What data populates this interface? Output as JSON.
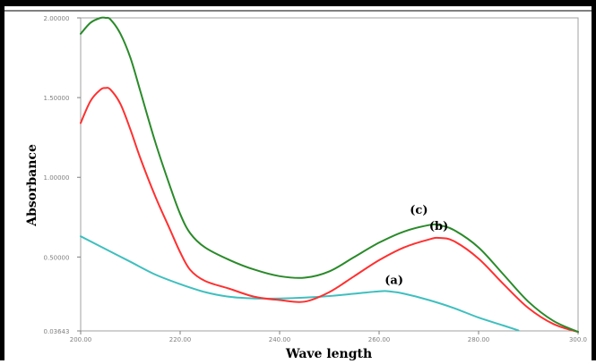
{
  "chart_data": {
    "type": "line",
    "title": "",
    "xlabel": "Wave length",
    "ylabel": "Absorbance",
    "xlim": [
      200,
      300
    ],
    "ylim": [
      0.03643,
      2.0
    ],
    "x_ticks": [
      "200.00",
      "220.00",
      "240.00",
      "260.00",
      "280.00",
      "300.0"
    ],
    "y_ticks": [
      "2.00000",
      "1.50000",
      "1.00000",
      "0.50000",
      "0.03643"
    ],
    "y_tick_values": [
      2.0,
      1.5,
      1.0,
      0.5,
      0.03643
    ],
    "grid": false,
    "series": [
      {
        "name": "(a)",
        "color": "#3fbfbf",
        "x": [
          200,
          205,
          210,
          215,
          220,
          225,
          230,
          235,
          240,
          245,
          250,
          255,
          260,
          262,
          265,
          270,
          275,
          280,
          285,
          288
        ],
        "y": [
          0.63,
          0.55,
          0.47,
          0.39,
          0.33,
          0.28,
          0.25,
          0.24,
          0.24,
          0.245,
          0.255,
          0.27,
          0.285,
          0.285,
          0.27,
          0.23,
          0.18,
          0.12,
          0.07,
          0.04
        ]
      },
      {
        "name": "(b)",
        "color": "#ff3030",
        "x": [
          200,
          202,
          204,
          205,
          206,
          208,
          210,
          212,
          215,
          218,
          220,
          222,
          225,
          230,
          235,
          240,
          245,
          250,
          255,
          260,
          265,
          270,
          272,
          275,
          280,
          285,
          290,
          295,
          300
        ],
        "y": [
          1.34,
          1.48,
          1.55,
          1.56,
          1.55,
          1.46,
          1.3,
          1.12,
          0.88,
          0.67,
          0.53,
          0.42,
          0.35,
          0.3,
          0.25,
          0.23,
          0.22,
          0.28,
          0.38,
          0.48,
          0.56,
          0.61,
          0.62,
          0.6,
          0.49,
          0.33,
          0.18,
          0.08,
          0.03
        ]
      },
      {
        "name": "(c)",
        "color": "#2a8a2a",
        "x": [
          200,
          202,
          204,
          205,
          206,
          208,
          210,
          212,
          215,
          218,
          220,
          222,
          225,
          230,
          235,
          240,
          245,
          250,
          255,
          260,
          265,
          270,
          272,
          275,
          280,
          285,
          290,
          295,
          300
        ],
        "y": [
          1.9,
          1.97,
          2.0,
          2.0,
          1.99,
          1.9,
          1.75,
          1.54,
          1.22,
          0.94,
          0.77,
          0.65,
          0.56,
          0.48,
          0.42,
          0.38,
          0.37,
          0.41,
          0.5,
          0.59,
          0.66,
          0.7,
          0.7,
          0.67,
          0.56,
          0.39,
          0.22,
          0.1,
          0.03
        ]
      }
    ],
    "annotations": [
      "(a)",
      "(b)",
      "(c)"
    ]
  },
  "colors": {
    "frame": "#000000",
    "axis": "#a0a0a0",
    "background": "#ffffff"
  }
}
